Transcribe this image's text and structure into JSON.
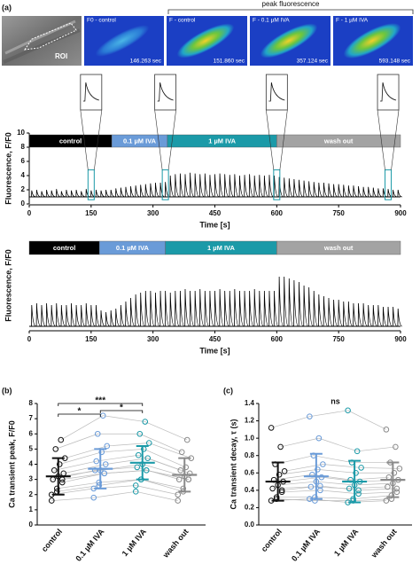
{
  "panel_a": {
    "label": "(a)",
    "roi": "ROI",
    "bracket": "peak fluorescence",
    "images": [
      {
        "title": "F0 - control",
        "time": "146.263 sec"
      },
      {
        "title": "F - control",
        "time": "151.860 sec"
      },
      {
        "title": "F - 0.1 µM IVA",
        "time": "357.124 sec"
      },
      {
        "title": "F - 1 µM IVA",
        "time": "593.148 sec"
      }
    ]
  },
  "chart_data": [
    {
      "type": "trace",
      "xlabel": "Time [s]",
      "ylabel": "Fluorescence, F/F0",
      "xlim": [
        0,
        900
      ],
      "xticks": [
        0,
        150,
        300,
        450,
        600,
        750,
        900
      ],
      "ylim": [
        0,
        10
      ],
      "yticks": [
        0,
        2,
        4,
        6,
        8,
        10
      ],
      "color": "#000000",
      "baseline": 1,
      "phases": [
        {
          "label": "control",
          "start": 0,
          "end": 200,
          "color": "#000000"
        },
        {
          "label": "0.1 µM IVA",
          "start": 200,
          "end": 335,
          "color": "#6a9bd8"
        },
        {
          "label": "1 µM IVA",
          "start": 335,
          "end": 600,
          "color": "#1b9aa8"
        },
        {
          "label": "wash out",
          "start": 600,
          "end": 900,
          "color": "#a3a3a3"
        }
      ],
      "highlights": [
        150,
        330,
        600,
        870
      ],
      "highlight_color": "#1b9aa8",
      "x": [
        6,
        18,
        30,
        42,
        54,
        66,
        78,
        90,
        102,
        114,
        126,
        138,
        150,
        162,
        174,
        186,
        198,
        210,
        222,
        234,
        246,
        258,
        270,
        282,
        294,
        306,
        318,
        330,
        342,
        354,
        366,
        378,
        390,
        402,
        414,
        426,
        438,
        450,
        462,
        474,
        486,
        498,
        510,
        522,
        534,
        546,
        558,
        570,
        582,
        594,
        606,
        618,
        630,
        642,
        654,
        666,
        678,
        690,
        702,
        714,
        726,
        738,
        750,
        762,
        774,
        786,
        798,
        810,
        822,
        834,
        846,
        858,
        870,
        882,
        894
      ],
      "values": [
        1.9,
        2.0,
        1.8,
        2.0,
        1.9,
        2.1,
        1.8,
        2.0,
        1.9,
        2.0,
        1.8,
        2.1,
        1.9,
        2.0,
        1.9,
        2.0,
        2.0,
        2.2,
        2.3,
        2.4,
        2.5,
        2.6,
        2.7,
        2.8,
        2.9,
        3.0,
        3.0,
        3.1,
        4.0,
        4.2,
        4.3,
        4.2,
        4.4,
        4.3,
        4.2,
        4.3,
        4.1,
        4.2,
        4.3,
        4.2,
        4.1,
        4.2,
        4.0,
        4.1,
        4.2,
        4.0,
        4.1,
        4.0,
        4.1,
        4.0,
        3.8,
        3.7,
        3.6,
        3.5,
        3.4,
        3.3,
        3.2,
        3.1,
        3.0,
        3.0,
        2.9,
        2.8,
        2.8,
        2.7,
        2.6,
        2.6,
        2.5,
        2.4,
        2.4,
        2.3,
        2.2,
        2.2,
        2.1,
        2.0,
        2.0
      ]
    },
    {
      "type": "trace",
      "xlabel": "Time [s]",
      "ylabel": "Fluorescence, F/F0",
      "xlim": [
        0,
        900
      ],
      "xticks": [
        0,
        150,
        300,
        450,
        600,
        750,
        900
      ],
      "ylim": [
        0.8,
        5
      ],
      "color": "#000000",
      "baseline": 1,
      "phases": [
        {
          "label": "control",
          "start": 0,
          "end": 170,
          "color": "#000000"
        },
        {
          "label": "0.1 µM IVA",
          "start": 170,
          "end": 330,
          "color": "#6a9bd8"
        },
        {
          "label": "1 µM IVA",
          "start": 330,
          "end": 600,
          "color": "#1b9aa8"
        },
        {
          "label": "wash out",
          "start": 600,
          "end": 900,
          "color": "#a3a3a3"
        }
      ],
      "x": [
        6,
        18,
        30,
        42,
        54,
        66,
        78,
        90,
        102,
        114,
        126,
        138,
        150,
        162,
        174,
        186,
        198,
        210,
        222,
        234,
        246,
        258,
        270,
        282,
        294,
        306,
        318,
        330,
        342,
        354,
        366,
        378,
        390,
        402,
        414,
        426,
        438,
        450,
        462,
        474,
        486,
        498,
        510,
        522,
        534,
        546,
        558,
        570,
        582,
        594,
        606,
        618,
        630,
        642,
        654,
        666,
        678,
        690,
        702,
        714,
        726,
        738,
        750,
        762,
        774,
        786,
        798,
        810,
        822,
        834,
        846,
        858,
        870,
        882,
        894
      ],
      "values": [
        2.2,
        2.3,
        2.2,
        2.3,
        2.2,
        2.3,
        2.2,
        2.2,
        2.3,
        2.2,
        2.2,
        2.3,
        2.2,
        2.2,
        1.9,
        1.8,
        1.9,
        2.0,
        2.2,
        2.4,
        2.6,
        2.8,
        2.9,
        3.0,
        3.0,
        2.9,
        3.0,
        3.0,
        2.9,
        3.0,
        3.0,
        3.1,
        3.0,
        3.0,
        3.1,
        3.0,
        3.0,
        3.0,
        3.1,
        3.0,
        3.0,
        3.1,
        3.0,
        3.0,
        3.0,
        3.1,
        3.0,
        3.0,
        3.0,
        3.0,
        3.8,
        3.8,
        3.7,
        3.6,
        3.5,
        3.3,
        3.2,
        3.0,
        2.8,
        2.7,
        2.6,
        2.5,
        2.5,
        2.4,
        2.4,
        2.3,
        2.3,
        2.3,
        2.2,
        2.2,
        2.2,
        2.1,
        2.1,
        2.1,
        2.0
      ]
    },
    {
      "type": "dot",
      "label": "(b)",
      "ylabel": "Ca transient peak, F/F0",
      "categories": [
        "control",
        "0.1 µM IVA",
        "1 µM IVA",
        "wash out"
      ],
      "colors": [
        "#111111",
        "#6a9bd8",
        "#1b9aa8",
        "#8a8a8a"
      ],
      "line_color": "#bbbbbb",
      "ylim": [
        0,
        8
      ],
      "yticks": [
        0,
        1,
        2,
        3,
        4,
        5,
        6,
        7,
        8
      ],
      "mean": [
        3.2,
        3.7,
        4.1,
        3.3
      ],
      "sd": [
        1.2,
        1.3,
        1.1,
        1.1
      ],
      "comparisons": [
        {
          "label": "*",
          "groups": [
            "control",
            "0.1 µM IVA"
          ]
        },
        {
          "label": "***",
          "groups": [
            "control",
            "1 µM IVA"
          ]
        },
        {
          "label": "*",
          "groups": [
            "0.1 µM IVA",
            "1 µM IVA"
          ]
        }
      ],
      "series": [
        {
          "values": [
            2.0,
            2.4,
            2.6,
            2.0
          ]
        },
        {
          "values": [
            2.4,
            2.8,
            3.0,
            2.4
          ]
        },
        {
          "values": [
            2.8,
            3.4,
            3.6,
            3.0
          ]
        },
        {
          "values": [
            3.0,
            3.6,
            3.8,
            3.0
          ]
        },
        {
          "values": [
            3.2,
            3.6,
            4.0,
            3.2
          ]
        },
        {
          "values": [
            3.4,
            4.0,
            4.4,
            3.4
          ]
        },
        {
          "values": [
            3.6,
            4.2,
            4.6,
            3.6
          ]
        },
        {
          "values": [
            4.0,
            4.8,
            5.0,
            3.8
          ]
        },
        {
          "values": [
            4.4,
            5.2,
            5.4,
            4.4
          ]
        },
        {
          "values": [
            5.0,
            6.0,
            6.0,
            4.8
          ]
        },
        {
          "values": [
            5.6,
            7.2,
            6.8,
            5.6
          ]
        },
        {
          "values": [
            1.6,
            1.8,
            2.2,
            1.6
          ]
        },
        {
          "values": [
            2.2,
            2.6,
            3.0,
            2.2
          ]
        },
        {
          "values": [
            3.0,
            3.4,
            3.6,
            3.0
          ]
        }
      ]
    },
    {
      "type": "dot",
      "label": "(c)",
      "ylabel": "Ca transient decay, τ (s)",
      "annotation": "ns",
      "categories": [
        "control",
        "0.1 µM IVA",
        "1 µM IVA",
        "wash out"
      ],
      "colors": [
        "#111111",
        "#6a9bd8",
        "#1b9aa8",
        "#8a8a8a"
      ],
      "line_color": "#bbbbbb",
      "ylim": [
        0,
        1.4
      ],
      "yticks": [
        {
          "value": 0,
          "label": "0.0"
        },
        0.2,
        0.4,
        0.6,
        0.8,
        {
          "value": 1,
          "label": "1.0"
        },
        1.2,
        1.4
      ],
      "mean": [
        0.5,
        0.56,
        0.5,
        0.52
      ],
      "sd": [
        0.22,
        0.26,
        0.24,
        0.2
      ],
      "series": [
        {
          "values": [
            0.28,
            0.3,
            0.26,
            0.28
          ]
        },
        {
          "values": [
            0.32,
            0.32,
            0.3,
            0.34
          ]
        },
        {
          "values": [
            0.38,
            0.4,
            0.36,
            0.38
          ]
        },
        {
          "values": [
            0.42,
            0.44,
            0.42,
            0.44
          ]
        },
        {
          "values": [
            0.46,
            0.5,
            0.46,
            0.48
          ]
        },
        {
          "values": [
            0.5,
            0.55,
            0.5,
            0.52
          ]
        },
        {
          "values": [
            0.52,
            0.58,
            0.52,
            0.55
          ]
        },
        {
          "values": [
            0.58,
            0.64,
            0.6,
            0.6
          ]
        },
        {
          "values": [
            0.62,
            0.7,
            0.66,
            0.65
          ]
        },
        {
          "values": [
            0.7,
            0.8,
            0.72,
            0.72
          ]
        },
        {
          "values": [
            0.9,
            1.0,
            0.85,
            0.9
          ]
        },
        {
          "values": [
            1.12,
            1.25,
            1.32,
            1.1
          ]
        },
        {
          "values": [
            0.3,
            0.28,
            0.28,
            0.3
          ]
        },
        {
          "values": [
            0.4,
            0.45,
            0.4,
            0.42
          ]
        }
      ]
    }
  ]
}
